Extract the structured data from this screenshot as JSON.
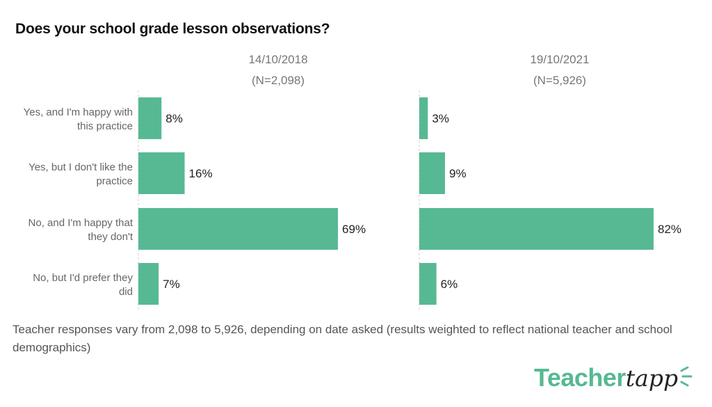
{
  "chart_data": {
    "type": "bar",
    "orientation": "horizontal",
    "title": "Does your school grade lesson observations?",
    "categories": [
      "Yes, and I'm happy with this practice",
      "Yes, but I don't like the practice",
      "No, and I'm happy that they don't",
      "No, but I'd prefer they did"
    ],
    "category_lines": [
      [
        "Yes, and I'm happy with",
        "this practice"
      ],
      [
        "Yes, but I don't like the",
        "practice"
      ],
      [
        "No, and I'm happy that",
        "they don't"
      ],
      [
        "No, but I'd prefer they",
        "did"
      ]
    ],
    "series": [
      {
        "name": "14/10/2018",
        "subtitle": "(N=2,098)",
        "values": [
          8,
          16,
          69,
          7
        ],
        "labels": [
          "8%",
          "16%",
          "69%",
          "7%"
        ]
      },
      {
        "name": "19/10/2021",
        "subtitle": "(N=5,926)",
        "values": [
          3,
          9,
          82,
          6
        ],
        "labels": [
          "3%",
          "9%",
          "82%",
          "6%"
        ]
      }
    ],
    "unit": "%",
    "xlim": [
      0,
      100
    ],
    "grid": false,
    "legend": "none",
    "bar_color": "#57b993"
  },
  "footnote": "Teacher responses vary from 2,098 to 5,926, depending on date asked (results weighted to reflect national teacher and school demographics)",
  "logo": {
    "part1": "Teacher",
    "part2": "tapp"
  }
}
